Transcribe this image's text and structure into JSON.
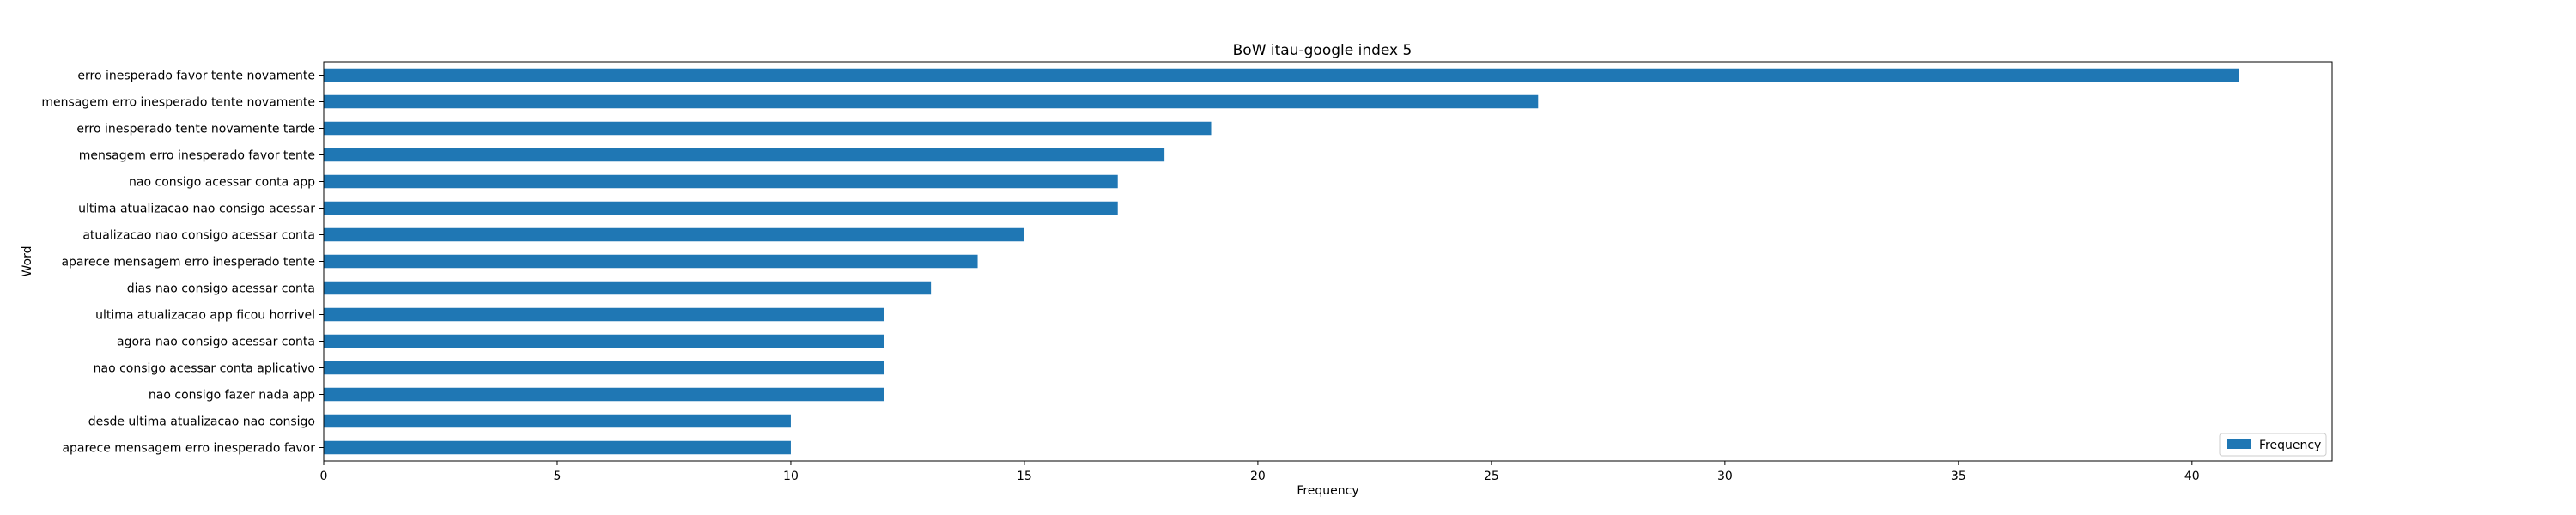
{
  "chart_data": {
    "type": "bar",
    "orientation": "horizontal",
    "title": "BoW itau-google index 5",
    "xlabel": "Frequency",
    "ylabel": "Word",
    "xlim": [
      0,
      43
    ],
    "xticks": [
      0,
      5,
      10,
      15,
      20,
      25,
      30,
      35,
      40
    ],
    "grid": false,
    "legend": {
      "position": "bottom-right",
      "entries": [
        "Frequency"
      ]
    },
    "bar_color": "#1f77b4",
    "categories": [
      "erro inesperado favor tente novamente",
      "mensagem erro inesperado tente novamente",
      "erro inesperado tente novamente tarde",
      "mensagem erro inesperado favor tente",
      "nao consigo acessar conta app",
      "ultima atualizacao nao consigo acessar",
      "atualizacao nao consigo acessar conta",
      "aparece mensagem erro inesperado tente",
      "dias nao consigo acessar conta",
      "ultima atualizacao app ficou horrivel",
      "agora nao consigo acessar conta",
      "nao consigo acessar conta aplicativo",
      "nao consigo fazer nada app",
      "desde ultima atualizacao nao consigo",
      "aparece mensagem erro inesperado favor"
    ],
    "series": [
      {
        "name": "Frequency",
        "values": [
          41,
          26,
          19,
          18,
          17,
          17,
          15,
          14,
          13,
          12,
          12,
          12,
          12,
          10,
          10
        ]
      }
    ]
  }
}
